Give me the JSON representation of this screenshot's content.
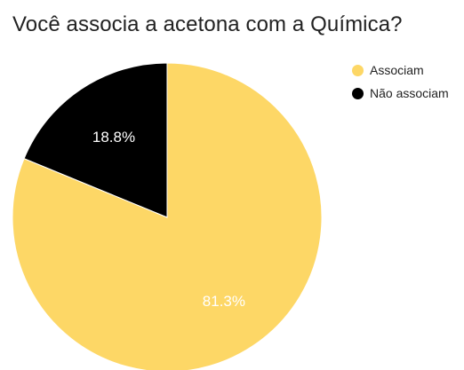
{
  "chart_data": {
    "type": "pie",
    "title": "Você associa a acetona com a Química?",
    "categories": [
      "Não associam",
      "Associam"
    ],
    "values": [
      18.8,
      81.3
    ],
    "value_labels": [
      "18.8%",
      "81.3%"
    ],
    "colors": [
      "#000000",
      "#FDD766"
    ],
    "legend": {
      "placement": "top-right",
      "items": [
        {
          "label": "Associam",
          "color": "#FDD766"
        },
        {
          "label": "Não associam",
          "color": "#000000"
        }
      ]
    }
  }
}
